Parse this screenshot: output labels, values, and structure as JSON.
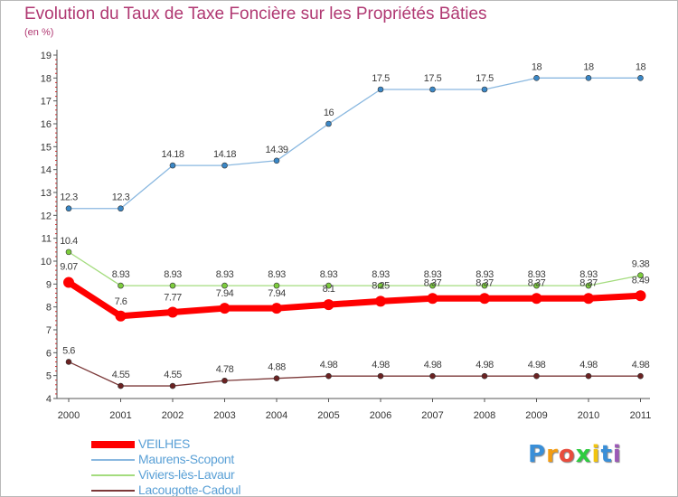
{
  "title": "Evolution du Taux de Taxe Foncière sur les Propriétés Bâties",
  "unit_label": "(en %)",
  "chart_data": {
    "type": "line",
    "title": "Evolution du Taux de Taxe Foncière sur les Propriétés Bâties",
    "ylabel": "(en %)",
    "xlabel": "",
    "ylim": [
      4,
      19
    ],
    "grid": false,
    "x": [
      "2000",
      "2001",
      "2002",
      "2003",
      "2004",
      "2005",
      "2006",
      "2007",
      "2008",
      "2009",
      "2010",
      "2011"
    ],
    "y_ticks": [
      "4",
      "5",
      "6",
      "7",
      "8",
      "9",
      "10",
      "11",
      "12",
      "13",
      "14",
      "15",
      "16",
      "17",
      "18",
      "19"
    ],
    "series": [
      {
        "name": "VEILHES",
        "color": "#ff0000",
        "point_color": "#ff0000",
        "values": [
          9.07,
          7.6,
          7.77,
          7.94,
          7.94,
          8.1,
          8.25,
          8.37,
          8.37,
          8.37,
          8.37,
          8.49
        ],
        "labels": [
          "9.07",
          "7.6",
          "7.77",
          "7.94",
          "7.94",
          "8.1",
          "8.25",
          "8.37",
          "8.37",
          "8.37",
          "8.37",
          "8.49"
        ]
      },
      {
        "name": "Maurens-Scopont",
        "color": "#8ab8e0",
        "point_color": "#3a87c6",
        "values": [
          12.3,
          12.3,
          14.18,
          14.18,
          14.39,
          16,
          17.5,
          17.5,
          17.5,
          18,
          18,
          18
        ],
        "labels": [
          "12.3",
          "12.3",
          "14.18",
          "14.18",
          "14.39",
          "16",
          "17.5",
          "17.5",
          "17.5",
          "18",
          "18",
          "18"
        ]
      },
      {
        "name": "Viviers-lès-Lavaur",
        "color": "#a4dc7e",
        "point_color": "#7ccc3c",
        "values": [
          10.4,
          8.93,
          8.93,
          8.93,
          8.93,
          8.93,
          8.93,
          8.93,
          8.93,
          8.93,
          8.93,
          9.38
        ],
        "labels": [
          "10.4",
          "8.93",
          "8.93",
          "8.93",
          "8.93",
          "8.93",
          "8.93",
          "8.93",
          "8.93",
          "8.93",
          "8.93",
          "9.38"
        ]
      },
      {
        "name": "Lacougotte-Cadoul",
        "color": "#7b3838",
        "point_color": "#6b2222",
        "values": [
          5.6,
          4.55,
          4.55,
          4.78,
          4.88,
          4.98,
          4.98,
          4.98,
          4.98,
          4.98,
          4.98,
          4.98
        ],
        "labels": [
          "5.6",
          "4.55",
          "4.55",
          "4.78",
          "4.88",
          "4.98",
          "4.98",
          "4.98",
          "4.98",
          "4.98",
          "4.98",
          "4.98"
        ]
      }
    ]
  },
  "legend": {
    "items": [
      {
        "label": "VEILHES",
        "color": "#ff0000"
      },
      {
        "label": "Maurens-Scopont",
        "color": "#8ab8e0"
      },
      {
        "label": "Viviers-lès-Lavaur",
        "color": "#a4dc7e"
      },
      {
        "label": "Lacougotte-Cadoul",
        "color": "#7b3838"
      }
    ]
  },
  "logo": {
    "letters": [
      "P",
      "r",
      "o",
      "x",
      "i",
      "t",
      "i"
    ],
    "colors": [
      "#3a8fd8",
      "#f39c12",
      "#e84c3d",
      "#2ecc40",
      "#f1c40f",
      "#3a8fd8",
      "#9b59b6"
    ]
  }
}
